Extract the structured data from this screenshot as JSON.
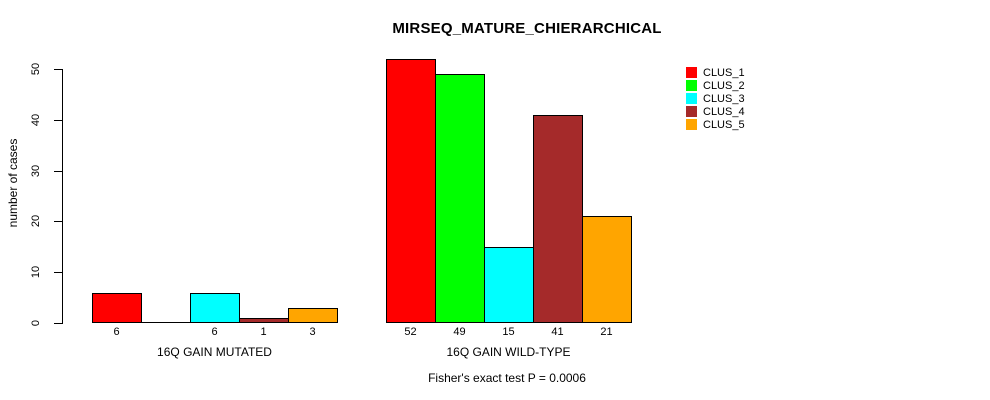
{
  "title": "MIRSEQ_MATURE_CHIERARCHICAL",
  "footer": "Fisher's exact test P = 0.0006",
  "y_axis": {
    "label": "number of cases",
    "ticks": [
      0,
      10,
      20,
      30,
      40,
      50
    ]
  },
  "legend": {
    "entries": [
      {
        "label": "CLUS_1",
        "color": "#FF0000"
      },
      {
        "label": "CLUS_2",
        "color": "#00FF00"
      },
      {
        "label": "CLUS_3",
        "color": "#00FFFF"
      },
      {
        "label": "CLUS_4",
        "color": "#A52A2A"
      },
      {
        "label": "CLUS_5",
        "color": "#FFA500"
      }
    ]
  },
  "chart_data": {
    "type": "bar",
    "title": "MIRSEQ_MATURE_CHIERARCHICAL",
    "xlabel": "",
    "ylabel": "number of cases",
    "ylim": [
      0,
      52
    ],
    "yticks": [
      0,
      10,
      20,
      30,
      40,
      50
    ],
    "grid": false,
    "legend_position": "right",
    "categories": [
      "16Q GAIN MUTATED",
      "16Q GAIN WILD-TYPE"
    ],
    "series": [
      {
        "name": "CLUS_1",
        "color": "#FF0000",
        "values": [
          6,
          52
        ]
      },
      {
        "name": "CLUS_2",
        "color": "#00FF00",
        "values": [
          0,
          49
        ]
      },
      {
        "name": "CLUS_3",
        "color": "#00FFFF",
        "values": [
          6,
          15
        ]
      },
      {
        "name": "CLUS_4",
        "color": "#A52A2A",
        "values": [
          1,
          41
        ]
      },
      {
        "name": "CLUS_5",
        "color": "#FFA500",
        "values": [
          3,
          21
        ]
      }
    ],
    "bar_value_labels": [
      [
        "6",
        "",
        "6",
        "1",
        "3"
      ],
      [
        "52",
        "49",
        "15",
        "41",
        "21"
      ]
    ],
    "annotation": "Fisher's exact test P = 0.0006"
  }
}
